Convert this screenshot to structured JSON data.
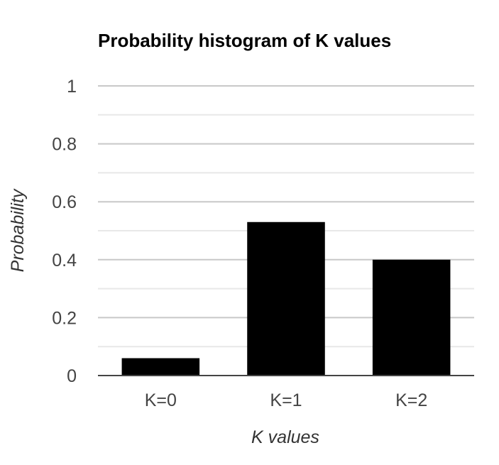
{
  "chart_data": {
    "type": "bar",
    "title": "Probability histogram of K values",
    "xlabel": "K values",
    "ylabel": "Probability",
    "categories": [
      "K=0",
      "K=1",
      "K=2"
    ],
    "values": [
      0.06,
      0.53,
      0.4
    ],
    "ylim": [
      0,
      1
    ],
    "yticks": [
      "0",
      "0.2",
      "0.4",
      "0.6",
      "0.8",
      "1"
    ],
    "ytick_values": [
      0,
      0.2,
      0.4,
      0.6,
      0.8,
      1
    ],
    "minor_grid_step": 0.1,
    "grid": true,
    "legend": "none",
    "colors": {
      "bar": "#000000",
      "major_grid": "#c8c8c8",
      "minor_grid": "#e8e8e8",
      "baseline": "#444444"
    }
  }
}
